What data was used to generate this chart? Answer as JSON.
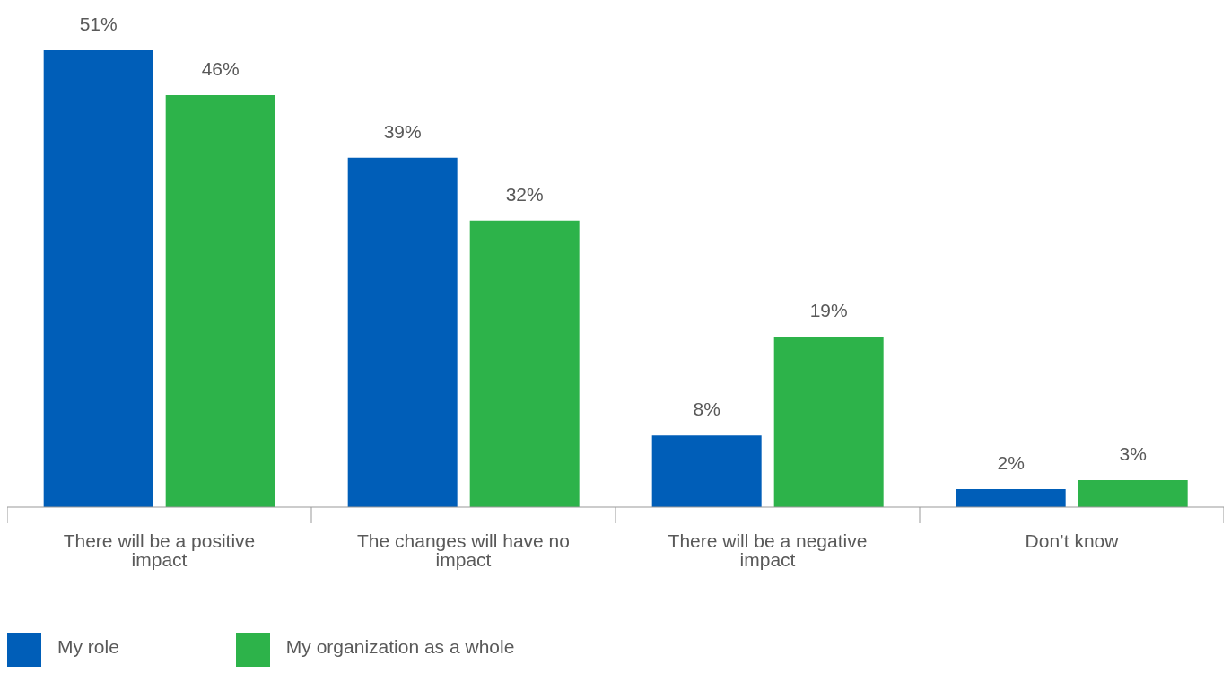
{
  "chart_data": {
    "type": "bar",
    "categories": [
      "There will be a positive impact",
      "The changes will have no impact",
      "There will be a negative impact",
      "Don’t know"
    ],
    "series": [
      {
        "name": "My role",
        "color": "#005eb8",
        "values": [
          51,
          39,
          8,
          2
        ],
        "value_labels": [
          "51%",
          "39%",
          "8%",
          "2%"
        ]
      },
      {
        "name": "My organization as a whole",
        "color": "#2db34a",
        "values": [
          46,
          32,
          19,
          3
        ],
        "value_labels": [
          "46%",
          "32%",
          "19%",
          "3%"
        ]
      }
    ],
    "legend": "bottom left",
    "grid": false
  }
}
